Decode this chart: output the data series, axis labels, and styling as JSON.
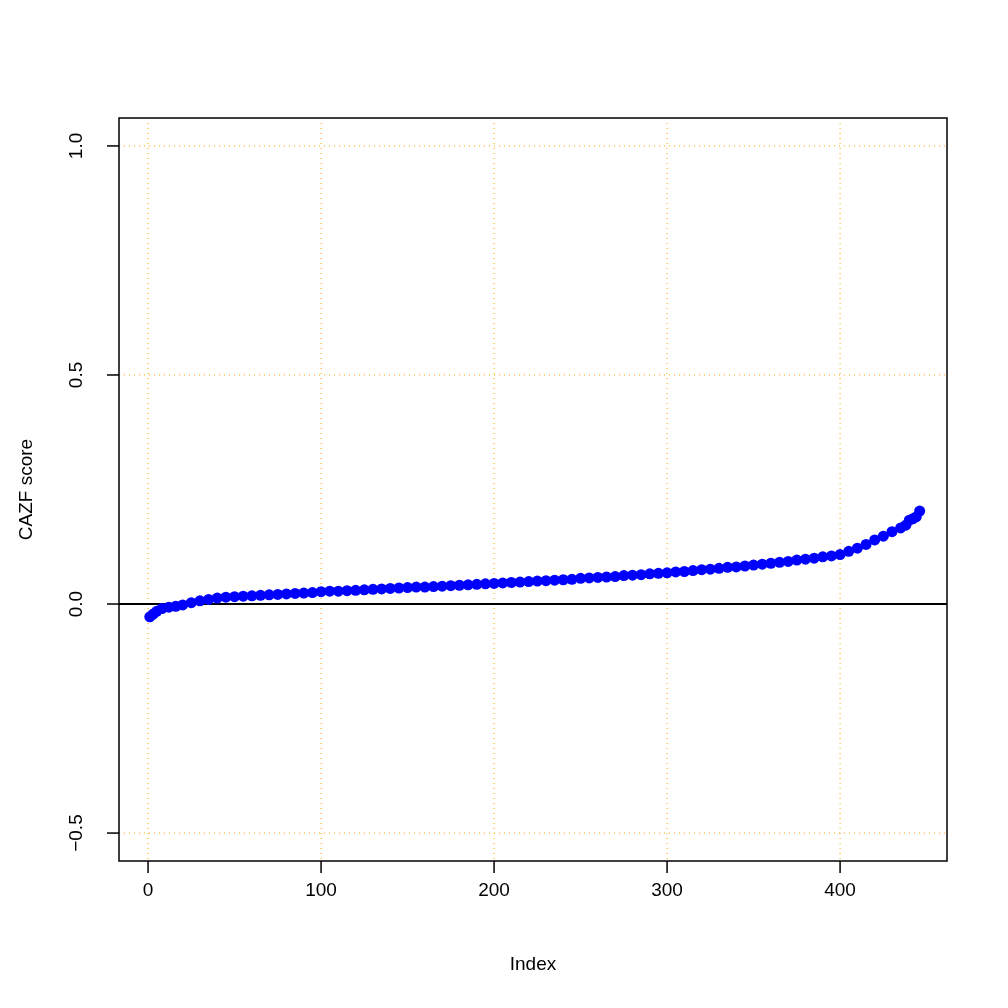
{
  "chart_data": {
    "type": "scatter",
    "xlabel": "Index",
    "ylabel": "CAZF score",
    "xlim": [
      -16.8,
      461.8
    ],
    "ylim": [
      -0.561,
      1.061
    ],
    "xticks": [
      0,
      100,
      200,
      300,
      400
    ],
    "yticks": [
      {
        "value": -0.5,
        "label": "−0.5"
      },
      {
        "value": 0,
        "label": "0.0"
      },
      0.5,
      {
        "value": 1,
        "label": "1.0"
      }
    ],
    "grid": true,
    "marker": "circle",
    "ref_lines": [
      {
        "axis": "y",
        "value": 0,
        "color": "#000000",
        "line_style": "solid"
      }
    ],
    "series": [
      {
        "color": "#0000ff",
        "x": [
          1,
          3,
          5,
          8,
          12,
          16,
          20,
          25,
          30,
          35,
          40,
          45,
          50,
          55,
          60,
          65,
          70,
          75,
          80,
          85,
          90,
          95,
          100,
          105,
          110,
          115,
          120,
          125,
          130,
          135,
          140,
          145,
          150,
          155,
          160,
          165,
          170,
          175,
          180,
          185,
          190,
          195,
          200,
          205,
          210,
          215,
          220,
          225,
          230,
          235,
          240,
          245,
          250,
          255,
          260,
          265,
          270,
          275,
          280,
          285,
          290,
          295,
          300,
          305,
          310,
          315,
          320,
          325,
          330,
          335,
          340,
          345,
          350,
          355,
          360,
          365,
          370,
          375,
          380,
          385,
          390,
          395,
          400,
          405,
          410,
          415,
          420,
          425,
          430,
          435,
          438,
          440,
          442,
          444,
          446
        ],
        "values": [
          -0.028,
          -0.022,
          -0.016,
          -0.01,
          -0.007,
          -0.005,
          -0.002,
          0.003,
          0.007,
          0.01,
          0.013,
          0.015,
          0.016,
          0.017,
          0.018,
          0.019,
          0.02,
          0.021,
          0.022,
          0.023,
          0.024,
          0.025,
          0.027,
          0.028,
          0.028,
          0.029,
          0.03,
          0.031,
          0.032,
          0.033,
          0.034,
          0.035,
          0.036,
          0.037,
          0.037,
          0.038,
          0.039,
          0.04,
          0.041,
          0.042,
          0.043,
          0.044,
          0.045,
          0.046,
          0.047,
          0.048,
          0.049,
          0.05,
          0.051,
          0.052,
          0.053,
          0.054,
          0.056,
          0.057,
          0.058,
          0.059,
          0.06,
          0.062,
          0.063,
          0.064,
          0.066,
          0.067,
          0.068,
          0.07,
          0.071,
          0.073,
          0.075,
          0.076,
          0.078,
          0.08,
          0.081,
          0.083,
          0.085,
          0.087,
          0.089,
          0.091,
          0.093,
          0.096,
          0.098,
          0.1,
          0.103,
          0.105,
          0.108,
          0.115,
          0.122,
          0.13,
          0.14,
          0.148,
          0.158,
          0.166,
          0.172,
          0.183,
          0.186,
          0.19,
          0.203
        ]
      }
    ]
  }
}
